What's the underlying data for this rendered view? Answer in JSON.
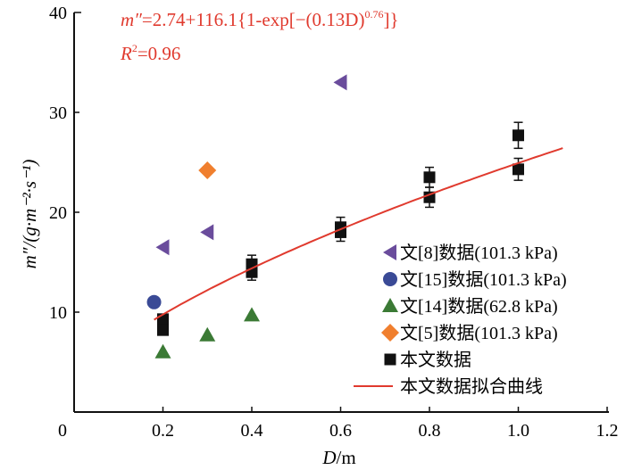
{
  "chart_data": {
    "type": "scatter",
    "xlabel_italic": "D",
    "xlabel_unit": "/m",
    "ylabel": "m″/(g·m⁻²·s⁻¹)",
    "xlim": [
      0,
      1.2
    ],
    "ylim": [
      0,
      40
    ],
    "xticks": [
      "0",
      "0.2",
      "0.4",
      "0.6",
      "0.8",
      "1.0",
      "1.2"
    ],
    "yticks": [
      "10",
      "20",
      "30",
      "40"
    ],
    "annotation": {
      "equation": "m″=2.74+116.1{1-exp[−(0.13D)^0.76]}",
      "equation_main": "=2.74+116.1{1-exp[−(0.13D)",
      "equation_var": "m″",
      "equation_exp": "0.76",
      "equation_tail": "]}",
      "r2": "R²=0.96",
      "r2_var": "R",
      "r2_sup": "2",
      "r2_val": "=0.96"
    },
    "legend_position": "bottom-right",
    "series": [
      {
        "name": "文[8]数据(101.3 kPa)",
        "marker": "triangle-left",
        "color": "#6a4c9c",
        "points": [
          [
            0.2,
            16.5
          ],
          [
            0.3,
            18.0
          ],
          [
            0.6,
            33.0
          ]
        ]
      },
      {
        "name": "文[15]数据(101.3 kPa)",
        "marker": "circle",
        "color": "#3a4a96",
        "points": [
          [
            0.18,
            11.0
          ]
        ]
      },
      {
        "name": "文[14]数据(62.8 kPa)",
        "marker": "triangle-up",
        "color": "#3b7a35",
        "points": [
          [
            0.2,
            6.0
          ],
          [
            0.3,
            7.7
          ],
          [
            0.4,
            9.7
          ]
        ]
      },
      {
        "name": "文[5]数据(101.3 kPa)",
        "marker": "diamond",
        "color": "#f07f2e",
        "points": [
          [
            0.3,
            24.2
          ]
        ]
      },
      {
        "name": "本文数据",
        "marker": "square",
        "color": "#111111",
        "points": [
          [
            0.2,
            9.3,
            0.5
          ],
          [
            0.2,
            8.2,
            0.4
          ],
          [
            0.4,
            14.8,
            0.9
          ],
          [
            0.4,
            14.0,
            0.8
          ],
          [
            0.6,
            18.5,
            1.0
          ],
          [
            0.6,
            18.0,
            0.9
          ],
          [
            0.8,
            23.5,
            1.0
          ],
          [
            0.8,
            21.5,
            1.0
          ],
          [
            1.0,
            27.7,
            1.3
          ],
          [
            1.0,
            24.3,
            1.1
          ]
        ]
      },
      {
        "name": "本文数据拟合曲线",
        "marker": "line",
        "color": "#e03a2e",
        "fit": {
          "a": 2.74,
          "b": 116.1,
          "k": 0.13,
          "n": 0.76,
          "x_range": [
            0.18,
            1.1
          ]
        }
      }
    ]
  }
}
